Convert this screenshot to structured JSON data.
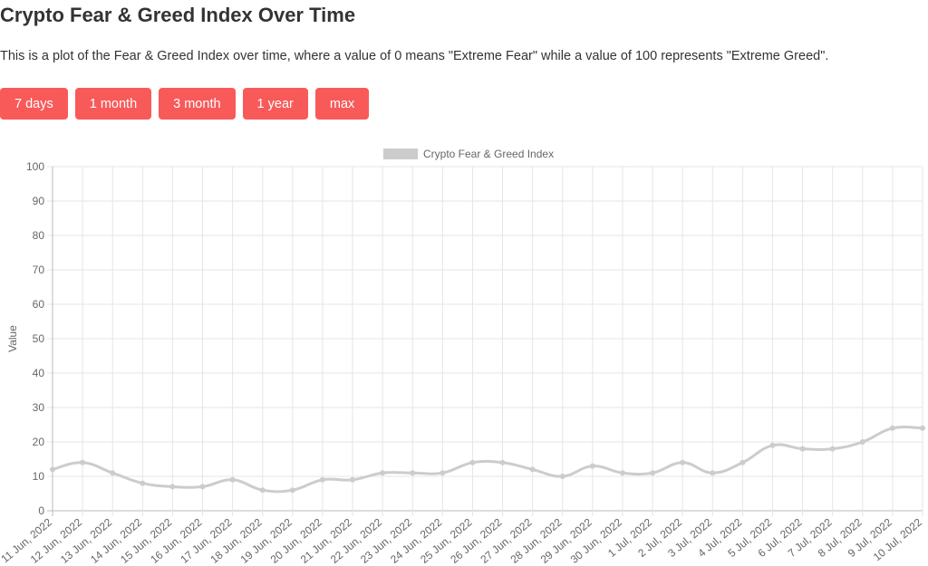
{
  "header": {
    "title": "Crypto Fear & Greed Index Over Time",
    "description": "This is a plot of the Fear & Greed Index over time, where a value of 0 means \"Extreme Fear\" while a value of 100 represents \"Extreme Greed\"."
  },
  "buttons": [
    "7 days",
    "1 month",
    "3 month",
    "1 year",
    "max"
  ],
  "chart_data": {
    "type": "line",
    "categories": [
      "11 Jun, 2022",
      "12 Jun, 2022",
      "13 Jun, 2022",
      "14 Jun, 2022",
      "15 Jun, 2022",
      "16 Jun, 2022",
      "17 Jun, 2022",
      "18 Jun, 2022",
      "19 Jun, 2022",
      "20 Jun, 2022",
      "21 Jun, 2022",
      "22 Jun, 2022",
      "23 Jun, 2022",
      "24 Jun, 2022",
      "25 Jun, 2022",
      "26 Jun, 2022",
      "27 Jun, 2022",
      "28 Jun, 2022",
      "29 Jun, 2022",
      "30 Jun, 2022",
      "1 Jul, 2022",
      "2 Jul, 2022",
      "3 Jul, 2022",
      "4 Jul, 2022",
      "5 Jul, 2022",
      "6 Jul, 2022",
      "7 Jul, 2022",
      "8 Jul, 2022",
      "9 Jul, 2022",
      "10 Jul, 2022"
    ],
    "series": [
      {
        "name": "Crypto Fear & Greed Index",
        "color": "#cccccc",
        "values": [
          12,
          14,
          11,
          8,
          7,
          7,
          9,
          6,
          6,
          9,
          9,
          11,
          11,
          11,
          14,
          14,
          12,
          10,
          13,
          11,
          11,
          14,
          11,
          14,
          19,
          18,
          18,
          20,
          24,
          24
        ]
      }
    ],
    "y_label": "Value",
    "ylim": [
      0,
      100
    ],
    "yticks": [
      0,
      10,
      20,
      30,
      40,
      50,
      60,
      70,
      80,
      90,
      100
    ],
    "grid": true,
    "legend": "top"
  }
}
